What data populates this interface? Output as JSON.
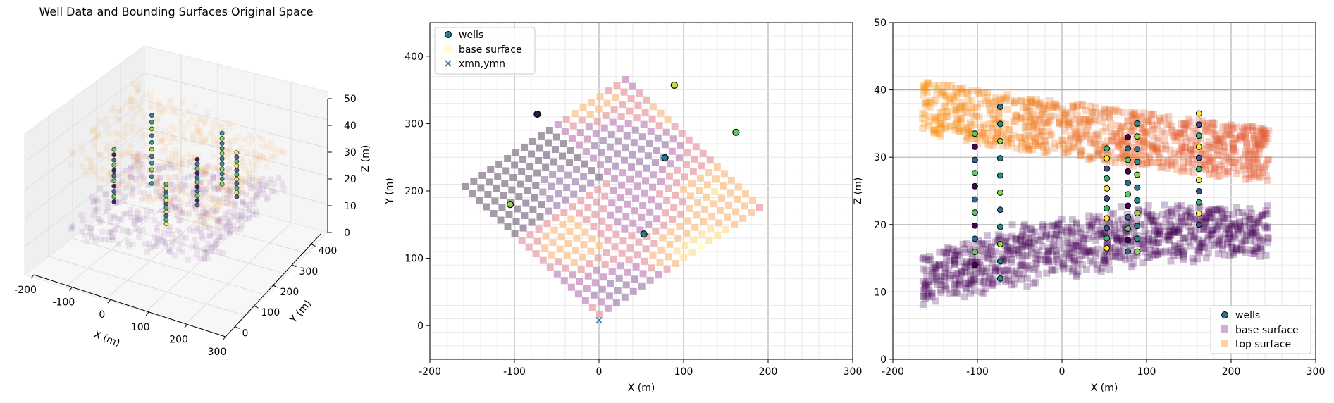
{
  "colors": {
    "wells_marker": "#2a788e",
    "base_surface_fill": "#fcfdbf",
    "top_surface_fill": "#fdc68c",
    "xmn_marker": "#1f77b4",
    "base_left": "#440154",
    "base_bottom": "#fbf7a8",
    "top_left": "#f98e09",
    "top_right": "#e45a31"
  },
  "chart_data": [
    {
      "type": "scatter",
      "title": "Well Data and Bounding Surfaces Original Space",
      "projection": "3d",
      "xlabel": "X (m)",
      "ylabel": "Y (m)",
      "zlabel": "Z (m)",
      "xlim": [
        -200,
        300
      ],
      "ylim": [
        -50,
        450
      ],
      "zlim": [
        0,
        50
      ],
      "xticks": [
        "-200",
        "-100",
        "0",
        "100",
        "200",
        "300"
      ],
      "yticks": [
        "0",
        "100",
        "200",
        "300",
        "400"
      ],
      "zticks": [
        "0",
        "10",
        "20",
        "30",
        "40",
        "50"
      ]
    },
    {
      "type": "scatter",
      "title": "",
      "xlabel": "X (m)",
      "ylabel": "Y (m)",
      "xlim": [
        -200,
        300
      ],
      "ylim": [
        -50,
        450
      ],
      "xticks": [
        "-200",
        "-100",
        "0",
        "100",
        "200",
        "300"
      ],
      "yticks": [
        "0",
        "100",
        "200",
        "300",
        "400"
      ],
      "grid": true,
      "legend": "top-left",
      "legend_entries": [
        "wells",
        "base surface",
        "xmn,ymn"
      ],
      "wells": [
        {
          "x": -105,
          "y": 180,
          "z": 20
        },
        {
          "x": -73,
          "y": 314,
          "z": 37
        },
        {
          "x": 53,
          "y": 136,
          "z": 16
        },
        {
          "x": 78,
          "y": 249,
          "z": 33
        },
        {
          "x": 89,
          "y": 357,
          "z": 31
        },
        {
          "x": 162,
          "y": 287,
          "z": 26
        }
      ],
      "origin": {
        "x": 0,
        "y": 8
      },
      "base_grid": {
        "xmn": 0,
        "ymn": 8,
        "u": [
          0.766,
          0.643
        ],
        "v": [
          -0.643,
          0.766
        ],
        "cell": 13,
        "n": 20
      }
    },
    {
      "type": "scatter",
      "title": "",
      "xlabel": "X (m)",
      "ylabel": "Z (m)",
      "xlim": [
        -200,
        300
      ],
      "ylim": [
        0,
        50
      ],
      "xticks": [
        "-200",
        "-100",
        "0",
        "100",
        "200",
        "300"
      ],
      "yticks": [
        "0",
        "10",
        "20",
        "30",
        "40",
        "50"
      ],
      "grid": true,
      "legend": "bottom-right",
      "legend_entries": [
        "wells",
        "base surface",
        "top surface"
      ],
      "well_columns": [
        {
          "x": -103,
          "z_min": 14,
          "z_max": 33.5
        },
        {
          "x": -73,
          "z_min": 12,
          "z_max": 37.5
        },
        {
          "x": 53,
          "z_min": 16.5,
          "z_max": 31.3
        },
        {
          "x": 78,
          "z_min": 16,
          "z_max": 33
        },
        {
          "x": 89,
          "z_min": 16,
          "z_max": 35
        },
        {
          "x": 162,
          "z_min": 20,
          "z_max": 36.5
        }
      ],
      "base_surface": {
        "x_range": [
          -165,
          245
        ],
        "z_left": 11,
        "z_right": 19,
        "thickness": 9
      },
      "top_surface": {
        "x_range": [
          -165,
          245
        ],
        "z_left": 38.5,
        "z_right": 31.5,
        "thickness": 9
      }
    }
  ]
}
